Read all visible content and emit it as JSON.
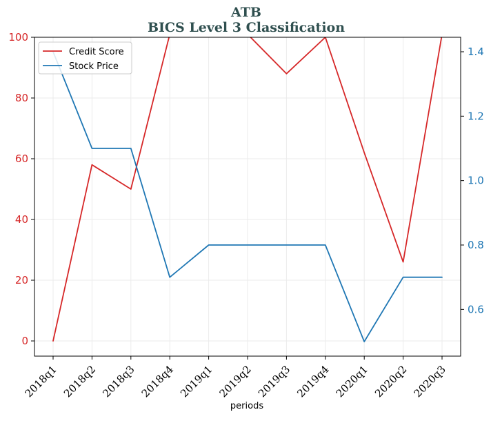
{
  "chart_data": {
    "type": "line",
    "title": "ATB",
    "subtitle": "BICS Level 3 Classification",
    "xlabel": "periods",
    "ylabel": "",
    "categories": [
      "2018q1",
      "2018q2",
      "2018q3",
      "2018q4",
      "2019q1",
      "2019q2",
      "2019q3",
      "2019q4",
      "2020q1",
      "2020q2",
      "2020q3"
    ],
    "series": [
      {
        "name": "Credit Score",
        "axis": "left",
        "color": "#d62728",
        "values": [
          0,
          58,
          50,
          101,
          101,
          101,
          88,
          100,
          62,
          26,
          101
        ]
      },
      {
        "name": "Stock Price",
        "axis": "right",
        "color": "#1f77b4",
        "values": [
          1.4,
          1.1,
          1.1,
          0.7,
          0.8,
          0.8,
          0.8,
          0.8,
          0.5,
          0.7,
          0.7
        ]
      }
    ],
    "ylim_left": [
      -5,
      100
    ],
    "yticks_left": [
      0,
      20,
      40,
      60,
      80,
      100
    ],
    "ylim_right": [
      0.455,
      1.445
    ],
    "yticks_right": [
      0.6,
      0.8,
      1.0,
      1.2,
      1.4
    ],
    "ytick_labels_right": [
      "0.6",
      "0.8",
      "1.0",
      "1.2",
      "1.4"
    ],
    "left_axis_color": "#d62728",
    "right_axis_color": "#1f77b4",
    "grid": true,
    "legend_position": "top-left"
  }
}
